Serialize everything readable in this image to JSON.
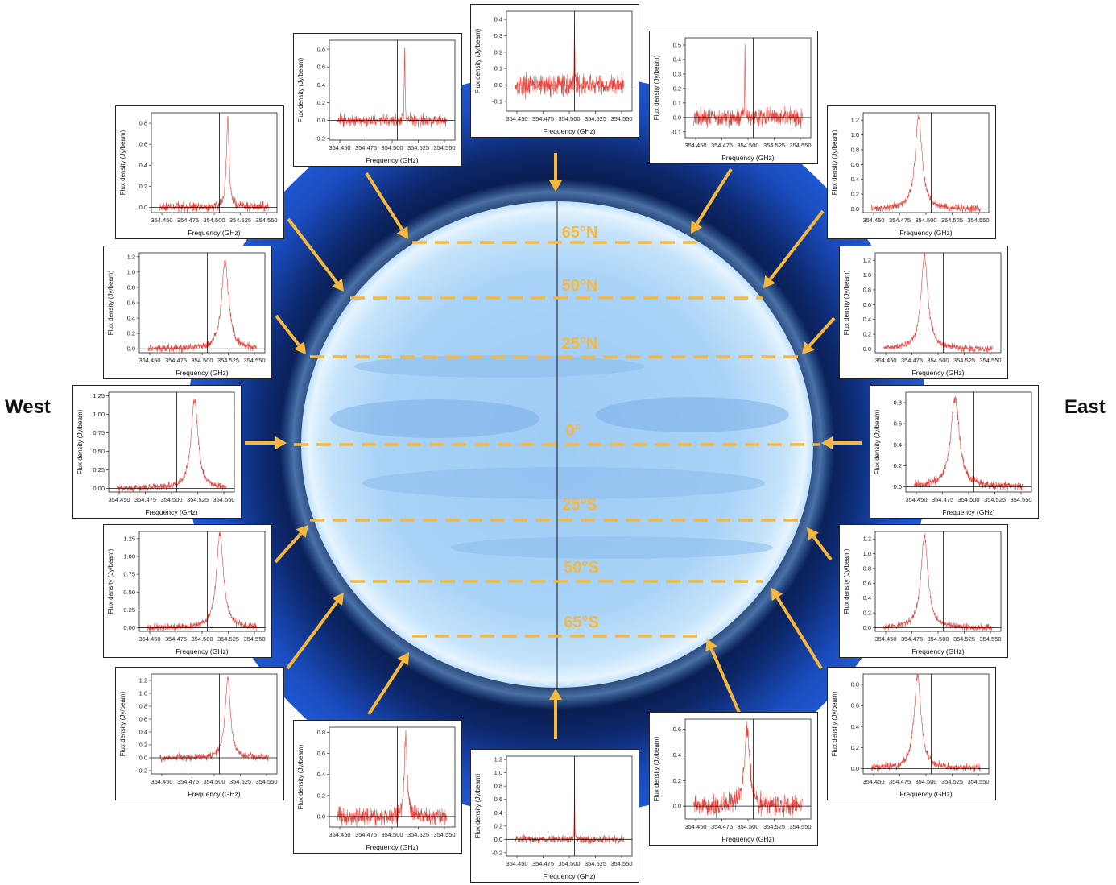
{
  "labels": {
    "west": "West",
    "east": "East"
  },
  "latitudes": [
    "65°N",
    "50°N",
    "25°N",
    "0°",
    "25°S",
    "50°S",
    "65°S"
  ],
  "colors": {
    "planet_core": "#9ecbf5",
    "planet_rim": "#e6f4ff",
    "background_disk": "#1f57cf",
    "latitude_lines": "#f5b83d",
    "arrows": "#f5b83d",
    "spectrum_line": "#e8453e"
  },
  "axis": {
    "ylabel": "Flux density (Jy/beam)",
    "xlabel": "Frequency (GHz)"
  },
  "spectra": [
    {
      "id": "north",
      "yticks": [
        "-0.1",
        "0.0",
        "0.1",
        "0.2",
        "0.3",
        "0.4"
      ],
      "xticks": [
        "354.450",
        "354.475",
        "354.500",
        "354.525",
        "354.550"
      ],
      "chart_data": {
        "type": "line",
        "xlim": [
          354.44,
          354.56
        ],
        "ylim": [
          -0.16,
          0.45
        ],
        "center": 354.505,
        "peak": 0.42,
        "width": 0.0003,
        "noise": 0.04,
        "vline": 354.505
      }
    },
    {
      "id": "north-northeast",
      "yticks": [
        "-0.1",
        "0.0",
        "0.1",
        "0.2",
        "0.3",
        "0.4",
        "0.5"
      ],
      "xticks": [
        "354.450",
        "354.475",
        "354.500",
        "354.525",
        "354.550"
      ],
      "chart_data": {
        "type": "line",
        "xlim": [
          354.44,
          354.56
        ],
        "ylim": [
          -0.14,
          0.55
        ],
        "center": 354.497,
        "peak": 0.5,
        "width": 0.0003,
        "noise": 0.04,
        "vline": 354.505
      }
    },
    {
      "id": "northeast",
      "yticks": [
        "0.0",
        "0.2",
        "0.4",
        "0.6",
        "0.8",
        "1.0",
        "1.2"
      ],
      "xticks": [
        "354.450",
        "354.475",
        "354.500",
        "354.525",
        "354.550"
      ],
      "chart_data": {
        "type": "line",
        "xlim": [
          354.44,
          354.56
        ],
        "ylim": [
          -0.05,
          1.3
        ],
        "center": 354.493,
        "peak": 1.25,
        "width": 0.004,
        "noise": 0.03,
        "vline": 354.505
      }
    },
    {
      "id": "east-northeast",
      "yticks": [
        "0.0",
        "0.2",
        "0.4",
        "0.6",
        "0.8",
        "1.0",
        "1.2"
      ],
      "xticks": [
        "354.450",
        "354.475",
        "354.500",
        "354.525",
        "354.550"
      ],
      "chart_data": {
        "type": "line",
        "xlim": [
          354.44,
          354.56
        ],
        "ylim": [
          -0.05,
          1.3
        ],
        "center": 354.487,
        "peak": 1.25,
        "width": 0.004,
        "noise": 0.03,
        "vline": 354.505
      }
    },
    {
      "id": "east",
      "yticks": [
        "0.0",
        "0.2",
        "0.4",
        "0.6",
        "0.8"
      ],
      "xticks": [
        "354.450",
        "354.475",
        "354.500",
        "354.525",
        "354.550"
      ],
      "chart_data": {
        "type": "line",
        "xlim": [
          354.44,
          354.56
        ],
        "ylim": [
          -0.05,
          0.9
        ],
        "center": 354.487,
        "peak": 0.85,
        "width": 0.005,
        "noise": 0.025,
        "vline": 354.505
      }
    },
    {
      "id": "east-southeast",
      "yticks": [
        "0.0",
        "0.2",
        "0.4",
        "0.6",
        "0.8",
        "1.0",
        "1.2"
      ],
      "xticks": [
        "354.450",
        "354.475",
        "354.500",
        "354.525",
        "354.550"
      ],
      "chart_data": {
        "type": "line",
        "xlim": [
          354.44,
          354.56
        ],
        "ylim": [
          -0.05,
          1.3
        ],
        "center": 354.487,
        "peak": 1.25,
        "width": 0.004,
        "noise": 0.03,
        "vline": 354.505
      }
    },
    {
      "id": "southeast",
      "yticks": [
        "0.0",
        "0.2",
        "0.4",
        "0.6",
        "0.8"
      ],
      "xticks": [
        "354.450",
        "354.475",
        "354.500",
        "354.525",
        "354.550"
      ],
      "chart_data": {
        "type": "line",
        "xlim": [
          354.44,
          354.56
        ],
        "ylim": [
          -0.05,
          0.9
        ],
        "center": 354.492,
        "peak": 0.88,
        "width": 0.004,
        "noise": 0.025,
        "vline": 354.505
      }
    },
    {
      "id": "south-southeast",
      "yticks": [
        "0.0",
        "0.2",
        "0.4",
        "0.6"
      ],
      "xticks": [
        "354.450",
        "354.475",
        "354.500",
        "354.525",
        "354.550"
      ],
      "chart_data": {
        "type": "line",
        "xlim": [
          354.44,
          354.56
        ],
        "ylim": [
          -0.1,
          0.68
        ],
        "center": 354.499,
        "peak": 0.6,
        "width": 0.003,
        "noise": 0.05,
        "vline": 354.505
      }
    },
    {
      "id": "south",
      "yticks": [
        "-0.2",
        "0.0",
        "0.2",
        "0.4",
        "0.6",
        "0.8",
        "1.0",
        "1.2"
      ],
      "xticks": [
        "354.450",
        "354.475",
        "354.500",
        "354.525",
        "354.550"
      ],
      "chart_data": {
        "type": "line",
        "xlim": [
          354.44,
          354.56
        ],
        "ylim": [
          -0.25,
          1.25
        ],
        "center": 354.505,
        "peak": 1.2,
        "width": 0.0002,
        "noise": 0.035,
        "vline": 354.505
      }
    },
    {
      "id": "south-southwest",
      "yticks": [
        "0.0",
        "0.2",
        "0.4",
        "0.6",
        "0.8"
      ],
      "xticks": [
        "354.450",
        "354.475",
        "354.500",
        "354.525",
        "354.550"
      ],
      "chart_data": {
        "type": "line",
        "xlim": [
          354.44,
          354.56
        ],
        "ylim": [
          -0.1,
          0.85
        ],
        "center": 354.513,
        "peak": 0.8,
        "width": 0.0015,
        "noise": 0.05,
        "vline": 354.505
      }
    },
    {
      "id": "southwest",
      "yticks": [
        "-0.2",
        "0.0",
        "0.2",
        "0.4",
        "0.6",
        "0.8",
        "1.0",
        "1.2"
      ],
      "xticks": [
        "354.450",
        "354.475",
        "354.500",
        "354.525",
        "354.550"
      ],
      "chart_data": {
        "type": "line",
        "xlim": [
          354.44,
          354.56
        ],
        "ylim": [
          -0.25,
          1.3
        ],
        "center": 354.513,
        "peak": 1.25,
        "width": 0.003,
        "noise": 0.035,
        "vline": 354.505
      }
    },
    {
      "id": "west-southwest",
      "yticks": [
        "0.00",
        "0.25",
        "0.50",
        "0.75",
        "1.00",
        "1.25"
      ],
      "xticks": [
        "354.450",
        "354.475",
        "354.500",
        "354.525",
        "354.550"
      ],
      "chart_data": {
        "type": "line",
        "xlim": [
          354.44,
          354.56
        ],
        "ylim": [
          -0.05,
          1.35
        ],
        "center": 354.517,
        "peak": 1.32,
        "width": 0.004,
        "noise": 0.03,
        "vline": 354.505
      }
    },
    {
      "id": "west",
      "yticks": [
        "0.00",
        "0.25",
        "0.50",
        "0.75",
        "1.00",
        "1.25"
      ],
      "xticks": [
        "354.450",
        "354.475",
        "354.500",
        "354.525",
        "354.550"
      ],
      "chart_data": {
        "type": "line",
        "xlim": [
          354.44,
          354.56
        ],
        "ylim": [
          -0.05,
          1.3
        ],
        "center": 354.522,
        "peak": 1.2,
        "width": 0.004,
        "noise": 0.03,
        "vline": 354.505
      }
    },
    {
      "id": "west-northwest",
      "yticks": [
        "0.0",
        "0.2",
        "0.4",
        "0.6",
        "0.8",
        "1.0",
        "1.2"
      ],
      "xticks": [
        "354.450",
        "354.475",
        "354.500",
        "354.525",
        "354.550"
      ],
      "chart_data": {
        "type": "line",
        "xlim": [
          354.44,
          354.56
        ],
        "ylim": [
          -0.05,
          1.25
        ],
        "center": 354.522,
        "peak": 1.15,
        "width": 0.004,
        "noise": 0.03,
        "vline": 354.505
      }
    },
    {
      "id": "northwest",
      "yticks": [
        "0.0",
        "0.2",
        "0.4",
        "0.6",
        "0.8"
      ],
      "xticks": [
        "354.450",
        "354.475",
        "354.500",
        "354.525",
        "354.550"
      ],
      "chart_data": {
        "type": "line",
        "xlim": [
          354.44,
          354.56
        ],
        "ylim": [
          -0.05,
          0.9
        ],
        "center": 354.513,
        "peak": 0.85,
        "width": 0.0015,
        "noise": 0.03,
        "vline": 354.505
      }
    },
    {
      "id": "north-northwest",
      "yticks": [
        "-0.2",
        "0.0",
        "0.2",
        "0.4",
        "0.6",
        "0.8"
      ],
      "xticks": [
        "354.450",
        "354.475",
        "354.500",
        "354.525",
        "354.550"
      ],
      "chart_data": {
        "type": "line",
        "xlim": [
          354.44,
          354.56
        ],
        "ylim": [
          -0.22,
          0.9
        ],
        "center": 354.512,
        "peak": 0.85,
        "width": 0.0004,
        "noise": 0.04,
        "vline": 354.505
      }
    }
  ]
}
